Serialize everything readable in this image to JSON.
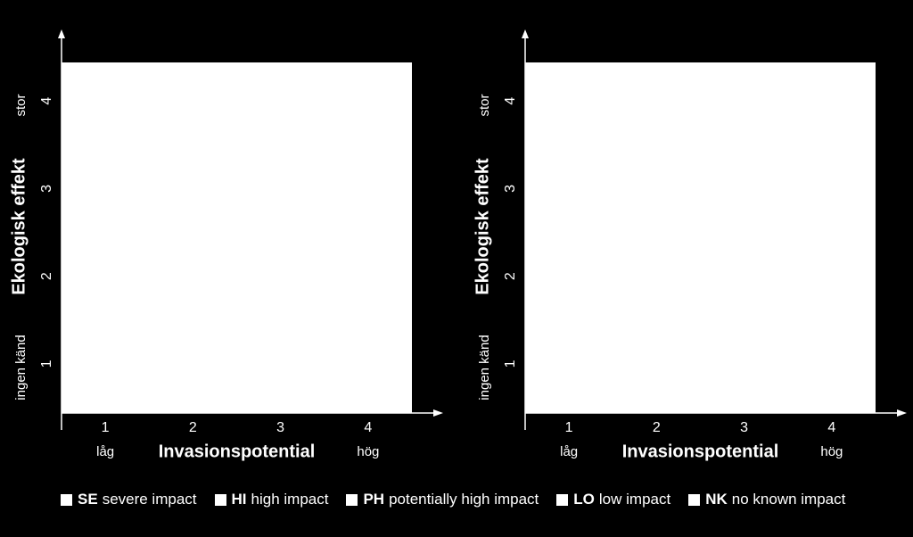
{
  "colors": {
    "background": "#000000",
    "foreground": "#ffffff",
    "plot_area": "#ffffff"
  },
  "chart_data": [
    {
      "type": "scatter",
      "title": "",
      "xlabel": "Invasionspotential",
      "ylabel": "Ekologisk effekt",
      "x_ticks": [
        "1",
        "2",
        "3",
        "4"
      ],
      "y_ticks": [
        "1",
        "2",
        "3",
        "4"
      ],
      "x_low_label": "låg",
      "x_high_label": "hög",
      "y_low_label": "ingen känd",
      "y_high_label": "stor",
      "xlim": [
        0.5,
        4.5
      ],
      "ylim": [
        0.5,
        4.5
      ],
      "grid": false,
      "points": []
    },
    {
      "type": "scatter",
      "title": "",
      "xlabel": "Invasionspotential",
      "ylabel": "Ekologisk effekt",
      "x_ticks": [
        "1",
        "2",
        "3",
        "4"
      ],
      "y_ticks": [
        "1",
        "2",
        "3",
        "4"
      ],
      "x_low_label": "låg",
      "x_high_label": "hög",
      "y_low_label": "ingen känd",
      "y_high_label": "stor",
      "xlim": [
        0.5,
        4.5
      ],
      "ylim": [
        0.5,
        4.5
      ],
      "grid": false,
      "points": []
    }
  ],
  "legend": [
    {
      "abbr": "SE",
      "label": "severe impact"
    },
    {
      "abbr": "HI",
      "label": "high impact"
    },
    {
      "abbr": "PH",
      "label": "potentially high impact"
    },
    {
      "abbr": "LO",
      "label": "low impact"
    },
    {
      "abbr": "NK",
      "label": "no known impact"
    }
  ]
}
